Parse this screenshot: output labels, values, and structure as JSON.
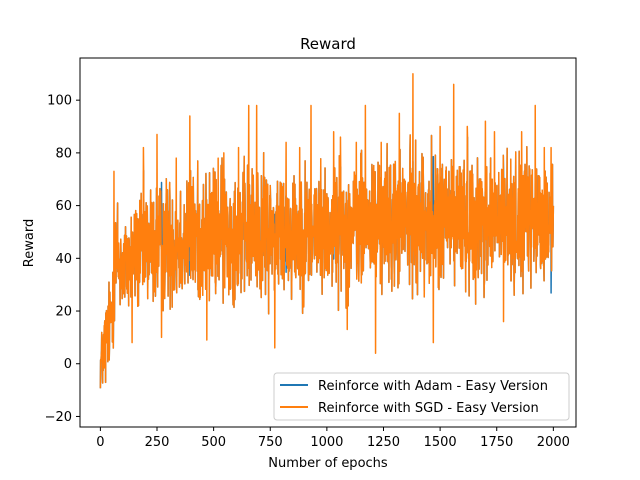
{
  "chart_data": {
    "type": "line",
    "title": "Reward",
    "xlabel": "Number of epochs",
    "ylabel": "Reward",
    "xlim": [
      -90,
      2100
    ],
    "ylim": [
      -24,
      116
    ],
    "xticks": [
      0,
      250,
      500,
      750,
      1000,
      1250,
      1500,
      1750,
      2000
    ],
    "yticks": [
      -20,
      0,
      20,
      40,
      60,
      80,
      100
    ],
    "grid": false,
    "legend": "bottom-right",
    "num_epochs": 2000,
    "series": [
      {
        "name": "Reinforce with Adam - Easy Version",
        "color": "#1f77b4",
        "profile": [
          {
            "x": 0,
            "low": -13,
            "high": 12
          },
          {
            "x": 20,
            "low": -18,
            "high": 30
          },
          {
            "x": 50,
            "low": 0,
            "high": 40
          },
          {
            "x": 70,
            "low": 8,
            "high": 73
          },
          {
            "x": 100,
            "low": 12,
            "high": 60
          },
          {
            "x": 200,
            "low": 14,
            "high": 75
          },
          {
            "x": 400,
            "low": 16,
            "high": 80
          },
          {
            "x": 600,
            "low": 18,
            "high": 82
          },
          {
            "x": 800,
            "low": 18,
            "high": 82
          },
          {
            "x": 1000,
            "low": 20,
            "high": 82
          },
          {
            "x": 1200,
            "low": 20,
            "high": 85
          },
          {
            "x": 1400,
            "low": 22,
            "high": 88
          },
          {
            "x": 1600,
            "low": 22,
            "high": 88
          },
          {
            "x": 1800,
            "low": 22,
            "high": 86
          },
          {
            "x": 2000,
            "low": 24,
            "high": 82
          }
        ],
        "spikes": []
      },
      {
        "name": "Reinforce with SGD - Easy Version",
        "color": "#ff7f0e",
        "profile": [
          {
            "x": 0,
            "low": -13,
            "high": 12
          },
          {
            "x": 20,
            "low": -18,
            "high": 30
          },
          {
            "x": 50,
            "low": 0,
            "high": 40
          },
          {
            "x": 70,
            "low": 8,
            "high": 73
          },
          {
            "x": 100,
            "low": 12,
            "high": 60
          },
          {
            "x": 200,
            "low": 14,
            "high": 75
          },
          {
            "x": 400,
            "low": 16,
            "high": 80
          },
          {
            "x": 600,
            "low": 18,
            "high": 82
          },
          {
            "x": 800,
            "low": 18,
            "high": 82
          },
          {
            "x": 1000,
            "low": 20,
            "high": 82
          },
          {
            "x": 1200,
            "low": 20,
            "high": 85
          },
          {
            "x": 1400,
            "low": 22,
            "high": 88
          },
          {
            "x": 1600,
            "low": 22,
            "high": 88
          },
          {
            "x": 1800,
            "low": 22,
            "high": 86
          },
          {
            "x": 2000,
            "low": 24,
            "high": 82
          }
        ],
        "spikes": [
          {
            "x": 60,
            "y": 73
          },
          {
            "x": 140,
            "y": 8
          },
          {
            "x": 190,
            "y": 82
          },
          {
            "x": 250,
            "y": 87
          },
          {
            "x": 270,
            "y": 10
          },
          {
            "x": 335,
            "y": 78
          },
          {
            "x": 395,
            "y": 94
          },
          {
            "x": 470,
            "y": 9
          },
          {
            "x": 520,
            "y": 78
          },
          {
            "x": 545,
            "y": 80
          },
          {
            "x": 610,
            "y": 82
          },
          {
            "x": 655,
            "y": 98
          },
          {
            "x": 690,
            "y": 98
          },
          {
            "x": 770,
            "y": 6
          },
          {
            "x": 820,
            "y": 84
          },
          {
            "x": 880,
            "y": 82
          },
          {
            "x": 930,
            "y": 98
          },
          {
            "x": 1030,
            "y": 88
          },
          {
            "x": 1060,
            "y": 86
          },
          {
            "x": 1090,
            "y": 13
          },
          {
            "x": 1130,
            "y": 84
          },
          {
            "x": 1170,
            "y": 98
          },
          {
            "x": 1215,
            "y": 4
          },
          {
            "x": 1240,
            "y": 84
          },
          {
            "x": 1320,
            "y": 95
          },
          {
            "x": 1380,
            "y": 110
          },
          {
            "x": 1470,
            "y": 8
          },
          {
            "x": 1500,
            "y": 90
          },
          {
            "x": 1560,
            "y": 106
          },
          {
            "x": 1620,
            "y": 90
          },
          {
            "x": 1700,
            "y": 92
          },
          {
            "x": 1740,
            "y": 88
          },
          {
            "x": 1780,
            "y": 16
          },
          {
            "x": 1860,
            "y": 88
          },
          {
            "x": 1920,
            "y": 98
          },
          {
            "x": 1960,
            "y": 82
          },
          {
            "x": 1990,
            "y": 82
          }
        ]
      }
    ]
  }
}
